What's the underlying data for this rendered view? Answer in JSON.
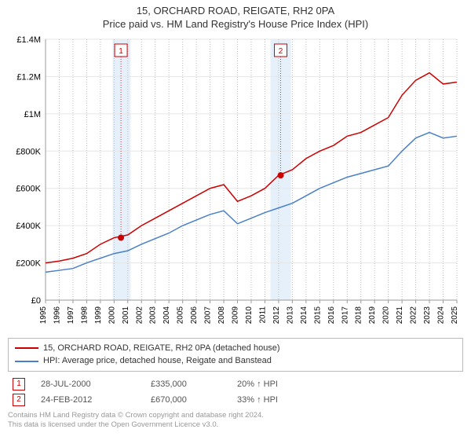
{
  "title": "15, ORCHARD ROAD, REIGATE, RH2 0PA",
  "subtitle": "Price paid vs. HM Land Registry's House Price Index (HPI)",
  "chart": {
    "type": "line",
    "background_color": "#ffffff",
    "grid_color": "#e6e6e6",
    "dotted_grid_color": "#bbbbbb",
    "axis_color": "#999999",
    "highlight_color": "#e6f0fa",
    "text_color": "#333333",
    "ylim": [
      0,
      1400000
    ],
    "ylabel_prefix": "£",
    "ytick_values": [
      0,
      200000,
      400000,
      600000,
      800000,
      1000000,
      1200000,
      1400000
    ],
    "ytick_labels": [
      "£0",
      "£200K",
      "£400K",
      "£600K",
      "£800K",
      "£1M",
      "£1.2M",
      "£1.4M"
    ],
    "x_years": [
      1995,
      1996,
      1997,
      1998,
      1999,
      2000,
      2001,
      2002,
      2003,
      2004,
      2005,
      2006,
      2007,
      2008,
      2009,
      2010,
      2011,
      2012,
      2013,
      2014,
      2015,
      2016,
      2017,
      2018,
      2019,
      2020,
      2021,
      2022,
      2023,
      2024,
      2025
    ],
    "xlim": [
      1995,
      2025
    ],
    "series": [
      {
        "key": "price_paid",
        "label": "15, ORCHARD ROAD, REIGATE, RH2 0PA (detached house)",
        "color": "#cc0000",
        "line_width": 1.5,
        "values": [
          200,
          210,
          225,
          250,
          300,
          335,
          350,
          400,
          440,
          480,
          520,
          560,
          600,
          620,
          530,
          560,
          600,
          670,
          700,
          760,
          800,
          830,
          880,
          900,
          940,
          980,
          1100,
          1180,
          1220,
          1160,
          1170
        ]
      },
      {
        "key": "hpi",
        "label": "HPI: Average price, detached house, Reigate and Banstead",
        "color": "#4a80c7",
        "line_width": 1.5,
        "values": [
          150,
          160,
          170,
          200,
          225,
          250,
          265,
          300,
          330,
          360,
          400,
          430,
          460,
          480,
          410,
          440,
          470,
          495,
          520,
          560,
          600,
          630,
          660,
          680,
          700,
          720,
          800,
          870,
          900,
          870,
          880
        ]
      }
    ],
    "sale_markers": [
      {
        "num": "1",
        "x_year": 2000.5,
        "y_value": 335
      },
      {
        "num": "2",
        "x_year": 2012.15,
        "y_value": 670
      }
    ],
    "highlight_bands": [
      {
        "from_year": 1999.9,
        "to_year": 2001.2
      },
      {
        "from_year": 2011.4,
        "to_year": 2012.9
      }
    ]
  },
  "legend": {
    "rows": [
      {
        "color": "#cc0000",
        "label": "15, ORCHARD ROAD, REIGATE, RH2 0PA (detached house)"
      },
      {
        "color": "#4a80c7",
        "label": "HPI: Average price, detached house, Reigate and Banstead"
      }
    ]
  },
  "sales": [
    {
      "marker": "1",
      "date": "28-JUL-2000",
      "price": "£335,000",
      "delta": "20% ↑ HPI"
    },
    {
      "marker": "2",
      "date": "24-FEB-2012",
      "price": "£670,000",
      "delta": "33% ↑ HPI"
    }
  ],
  "footer_line1": "Contains HM Land Registry data © Crown copyright and database right 2024.",
  "footer_line2": "This data is licensed under the Open Government Licence v3.0."
}
